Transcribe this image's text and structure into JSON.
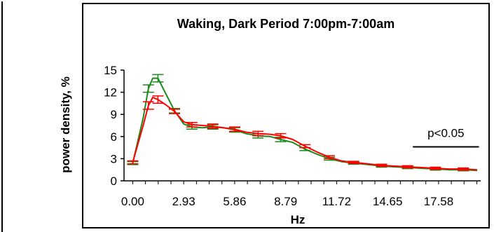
{
  "chart_data": {
    "type": "line",
    "title": "Waking, Dark Period 7:00pm-7:00am",
    "xlabel": "Hz",
    "ylabel": "power density, %",
    "xlim": [
      -0.5,
      20
    ],
    "ylim": [
      0,
      15
    ],
    "x_ticks": [
      0.0,
      2.93,
      5.86,
      8.79,
      11.72,
      14.65,
      17.58
    ],
    "x_tick_labels": [
      "0.00",
      "2.93",
      "5.86",
      "8.79",
      "11.72",
      "14.65",
      "17.58"
    ],
    "y_ticks": [
      0,
      3,
      6,
      9,
      12,
      15
    ],
    "y_tick_labels": [
      "0",
      "3",
      "6",
      "9",
      "12",
      "15"
    ],
    "grid": false,
    "legend": "none",
    "annotation": {
      "text": "p<0.05",
      "x_start": 16.1,
      "x_end": 19.9,
      "y": 4.6
    },
    "colors": {
      "series_a": "#1a8a1a",
      "series_b": "#ff0000",
      "frame": "#000000"
    },
    "series": [
      {
        "color": "#1a8a1a",
        "x": [
          0.0,
          0.6,
          0.9,
          1.15,
          1.45,
          1.9,
          2.4,
          2.93,
          3.4,
          4.0,
          4.6,
          5.2,
          5.86,
          6.5,
          7.2,
          7.9,
          8.5,
          9.2,
          9.9,
          10.6,
          11.3,
          12.0,
          12.7,
          13.5,
          14.3,
          15.0,
          15.8,
          16.6,
          17.4,
          18.2,
          19.0,
          19.8
        ],
        "y": [
          2.4,
          8.5,
          12.5,
          13.9,
          13.9,
          11.8,
          9.5,
          7.7,
          7.3,
          7.2,
          7.3,
          7.2,
          6.9,
          6.4,
          6.1,
          6.0,
          5.6,
          5.2,
          4.3,
          3.6,
          3.0,
          2.6,
          2.4,
          2.2,
          2.0,
          1.9,
          1.8,
          1.7,
          1.6,
          1.5,
          1.5,
          1.4
        ],
        "error": [
          0.2,
          0.4,
          0.5,
          0.5,
          0.5,
          0.4,
          0.3,
          0.3,
          0.3,
          0.3,
          0.3,
          0.3,
          0.3,
          0.3,
          0.3,
          0.3,
          0.3,
          0.3,
          0.2,
          0.2,
          0.2,
          0.2,
          0.15,
          0.15,
          0.15,
          0.15,
          0.15,
          0.15,
          0.15,
          0.15,
          0.15,
          0.15
        ]
      },
      {
        "color": "#ff0000",
        "x": [
          0.0,
          0.6,
          0.9,
          1.15,
          1.45,
          1.9,
          2.4,
          2.93,
          3.4,
          4.0,
          4.6,
          5.2,
          5.86,
          6.5,
          7.2,
          7.9,
          8.5,
          9.2,
          9.9,
          10.6,
          11.3,
          12.0,
          12.7,
          13.5,
          14.3,
          15.0,
          15.8,
          16.6,
          17.4,
          18.2,
          19.0,
          19.8
        ],
        "y": [
          2.5,
          7.5,
          10.2,
          11.3,
          11.0,
          10.3,
          9.4,
          8.0,
          7.6,
          7.5,
          7.4,
          7.2,
          7.0,
          6.6,
          6.4,
          6.3,
          6.1,
          5.6,
          4.7,
          3.9,
          3.2,
          2.7,
          2.5,
          2.3,
          2.1,
          2.0,
          1.9,
          1.8,
          1.7,
          1.6,
          1.6,
          1.5
        ],
        "error": [
          0.2,
          0.4,
          0.5,
          0.5,
          0.5,
          0.4,
          0.3,
          0.3,
          0.3,
          0.3,
          0.3,
          0.3,
          0.3,
          0.3,
          0.3,
          0.3,
          0.3,
          0.3,
          0.2,
          0.2,
          0.2,
          0.2,
          0.15,
          0.15,
          0.15,
          0.15,
          0.15,
          0.15,
          0.15,
          0.15,
          0.15,
          0.15
        ]
      }
    ]
  }
}
